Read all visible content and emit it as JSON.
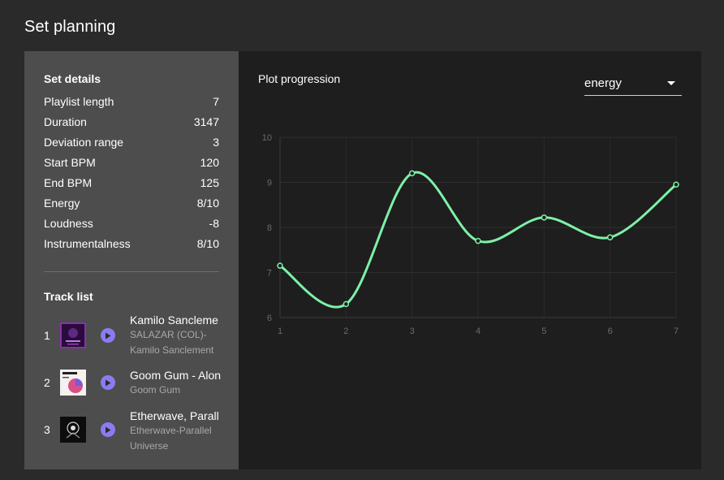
{
  "page_title": "Set planning",
  "details": {
    "title": "Set details",
    "rows": [
      {
        "label": "Playlist length",
        "value": "7"
      },
      {
        "label": "Duration",
        "value": "3147"
      },
      {
        "label": "Deviation range",
        "value": "3"
      },
      {
        "label": "Start BPM",
        "value": "120"
      },
      {
        "label": "End BPM",
        "value": "125"
      },
      {
        "label": "Energy",
        "value": "8/10"
      },
      {
        "label": "Loudness",
        "value": "-8"
      },
      {
        "label": "Instrumentalness",
        "value": "8/10"
      }
    ]
  },
  "tracklist": {
    "title": "Track list",
    "tracks": [
      {
        "number": "1",
        "title": "Kamilo Sancleme",
        "subtitle": "SALAZAR (COL)- Kamilo Sanclement",
        "icon": "album-art-icon"
      },
      {
        "number": "2",
        "title": "Goom Gum - Alon",
        "subtitle": "Goom Gum",
        "icon": "album-art-icon"
      },
      {
        "number": "3",
        "title": "Etherwave, Parall",
        "subtitle": "Etherwave-Parallel Universe",
        "icon": "album-art-icon"
      }
    ]
  },
  "plot": {
    "label": "Plot progression",
    "selected": "energy"
  },
  "colors": {
    "line": "#7ef0a8",
    "sidebar": "#4d4d4d",
    "play": "#8a7cf0"
  },
  "chart_data": {
    "type": "line",
    "x": [
      1,
      2,
      3,
      4,
      5,
      6,
      7
    ],
    "values": [
      7.15,
      6.3,
      9.2,
      7.7,
      8.22,
      7.78,
      8.95
    ],
    "ylim": [
      6,
      10
    ],
    "yticks": [
      "6",
      "7",
      "8",
      "9",
      "10"
    ],
    "xticks": [
      "1",
      "2",
      "3",
      "4",
      "5",
      "6",
      "7"
    ],
    "grid": true
  }
}
